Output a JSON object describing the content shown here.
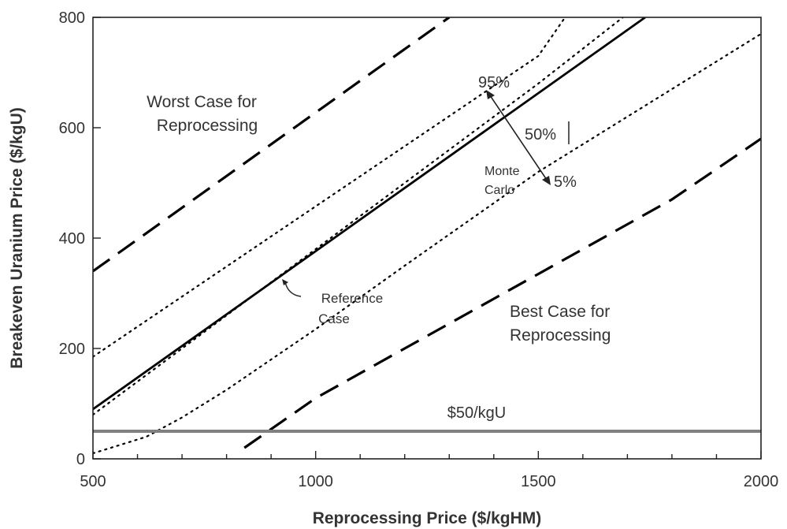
{
  "chart_data": {
    "type": "line",
    "xlabel": "Reprocessing Price ($/kgHM)",
    "ylabel": "Breakeven Uranium Price ($/kgU)",
    "xlim": [
      500,
      2000
    ],
    "ylim": [
      0,
      800
    ],
    "xticks": [
      500,
      1000,
      1500,
      2000
    ],
    "yticks": [
      0,
      200,
      400,
      600,
      800
    ],
    "x_minor_step": 100,
    "grid": false,
    "series": [
      {
        "key": "worst",
        "style": "dashed",
        "points": [
          [
            500,
            340
          ],
          [
            1300,
            800
          ]
        ]
      },
      {
        "key": "p95",
        "style": "dotted",
        "points": [
          [
            500,
            185
          ],
          [
            1500,
            730
          ],
          [
            1560,
            800
          ]
        ]
      },
      {
        "key": "reference",
        "style": "solid",
        "points": [
          [
            500,
            90
          ],
          [
            1740,
            800
          ]
        ]
      },
      {
        "key": "p5",
        "style": "dotted",
        "points": [
          [
            500,
            10
          ],
          [
            620,
            40
          ],
          [
            700,
            75
          ],
          [
            800,
            125
          ],
          [
            1000,
            235
          ],
          [
            1200,
            350
          ],
          [
            1500,
            520
          ],
          [
            1800,
            670
          ],
          [
            2000,
            770
          ]
        ]
      },
      {
        "key": "p50",
        "style": "dotted",
        "points": [
          [
            500,
            80
          ],
          [
            1000,
            380
          ],
          [
            1500,
            680
          ],
          [
            1690,
            800
          ]
        ]
      },
      {
        "key": "best",
        "style": "dashed",
        "points": [
          [
            840,
            20
          ],
          [
            1000,
            110
          ],
          [
            1200,
            200
          ],
          [
            1400,
            290
          ],
          [
            1600,
            380
          ],
          [
            1800,
            470
          ],
          [
            2000,
            580
          ]
        ]
      },
      {
        "key": "threshold",
        "style": "solid-gray",
        "points": [
          [
            500,
            50
          ],
          [
            2000,
            50
          ]
        ]
      }
    ],
    "annotations": {
      "worst_case_line1": "Worst Case for",
      "worst_case_line2": "Reprocessing",
      "best_case_line1": "Best Case for",
      "best_case_line2": "Reprocessing",
      "reference_line1": "Reference",
      "reference_line2": "Case",
      "pct_95": "95%",
      "pct_50": "50%",
      "pct_5": "5%",
      "monte_line1": "Monte",
      "monte_line2": "Carlo",
      "threshold_label": "$50/kgU"
    },
    "colors": {
      "lines": "#000000",
      "threshold": "#808080",
      "axes": "#222222"
    }
  }
}
